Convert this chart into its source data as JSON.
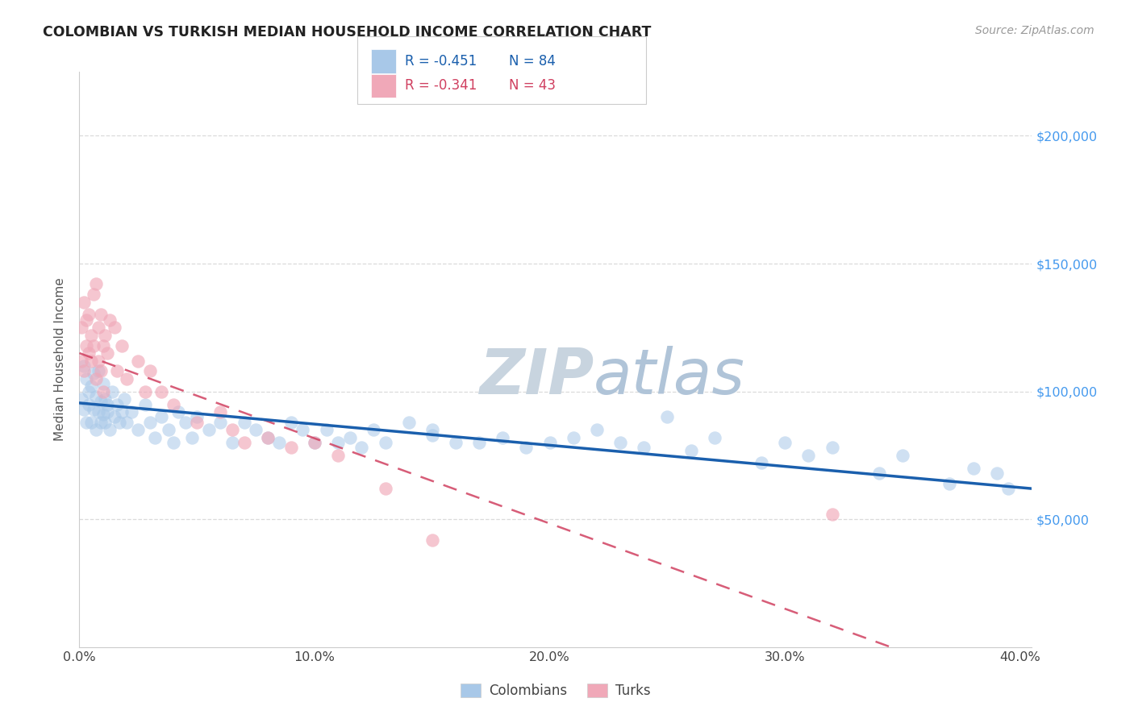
{
  "title": "COLOMBIAN VS TURKISH MEDIAN HOUSEHOLD INCOME CORRELATION CHART",
  "source": "Source: ZipAtlas.com",
  "ylabel": "Median Household Income",
  "xlabel_ticks": [
    "0.0%",
    "10.0%",
    "20.0%",
    "30.0%",
    "40.0%"
  ],
  "xlabel_vals": [
    0.0,
    0.1,
    0.2,
    0.3,
    0.4
  ],
  "ylabel_ticks": [
    "$50,000",
    "$100,000",
    "$150,000",
    "$200,000"
  ],
  "ylabel_vals": [
    50000,
    100000,
    150000,
    200000
  ],
  "xlim": [
    0.0,
    0.405
  ],
  "ylim": [
    0,
    225000
  ],
  "colombian_R": "-0.451",
  "colombian_N": "84",
  "turkish_R": "-0.341",
  "turkish_N": "43",
  "blue_color": "#a8c8e8",
  "pink_color": "#f0a8b8",
  "blue_line_color": "#1a5fad",
  "pink_line_color": "#d04060",
  "watermark_zip_color": "#c8d4e0",
  "watermark_atlas_color": "#b8cce0",
  "background_color": "#ffffff",
  "grid_color": "#d8d8d8",
  "right_axis_label_color": "#4499ee",
  "title_color": "#222222",
  "source_color": "#999999",
  "legend_text_color": "#222222",
  "bottom_legend_color": "#444444",
  "colombians_x": [
    0.001,
    0.002,
    0.002,
    0.003,
    0.003,
    0.004,
    0.004,
    0.005,
    0.005,
    0.006,
    0.006,
    0.007,
    0.007,
    0.008,
    0.008,
    0.009,
    0.009,
    0.01,
    0.01,
    0.011,
    0.011,
    0.012,
    0.012,
    0.013,
    0.014,
    0.015,
    0.016,
    0.017,
    0.018,
    0.019,
    0.02,
    0.022,
    0.025,
    0.028,
    0.03,
    0.032,
    0.035,
    0.038,
    0.04,
    0.042,
    0.045,
    0.048,
    0.05,
    0.055,
    0.06,
    0.065,
    0.07,
    0.075,
    0.08,
    0.085,
    0.09,
    0.095,
    0.1,
    0.105,
    0.11,
    0.115,
    0.12,
    0.125,
    0.13,
    0.14,
    0.15,
    0.16,
    0.18,
    0.2,
    0.22,
    0.25,
    0.27,
    0.3,
    0.32,
    0.35,
    0.38,
    0.39,
    0.395,
    0.15,
    0.17,
    0.19,
    0.21,
    0.24,
    0.29,
    0.31,
    0.34,
    0.37,
    0.23,
    0.26
  ],
  "colombians_y": [
    97000,
    93000,
    110000,
    88000,
    105000,
    100000,
    95000,
    102000,
    88000,
    107000,
    93000,
    98000,
    85000,
    92000,
    108000,
    96000,
    88000,
    103000,
    91000,
    97000,
    88000,
    92000,
    95000,
    85000,
    100000,
    90000,
    95000,
    88000,
    92000,
    97000,
    88000,
    92000,
    85000,
    95000,
    88000,
    82000,
    90000,
    85000,
    80000,
    92000,
    88000,
    82000,
    90000,
    85000,
    88000,
    80000,
    88000,
    85000,
    82000,
    80000,
    88000,
    85000,
    80000,
    85000,
    80000,
    82000,
    78000,
    85000,
    80000,
    88000,
    85000,
    80000,
    82000,
    80000,
    85000,
    90000,
    82000,
    80000,
    78000,
    75000,
    70000,
    68000,
    62000,
    83000,
    80000,
    78000,
    82000,
    78000,
    72000,
    75000,
    68000,
    64000,
    80000,
    77000
  ],
  "turks_x": [
    0.001,
    0.001,
    0.002,
    0.002,
    0.003,
    0.003,
    0.004,
    0.004,
    0.005,
    0.005,
    0.006,
    0.006,
    0.007,
    0.007,
    0.008,
    0.008,
    0.009,
    0.009,
    0.01,
    0.01,
    0.011,
    0.012,
    0.013,
    0.015,
    0.016,
    0.018,
    0.02,
    0.025,
    0.028,
    0.03,
    0.035,
    0.04,
    0.05,
    0.06,
    0.065,
    0.07,
    0.08,
    0.09,
    0.1,
    0.11,
    0.13,
    0.15,
    0.32
  ],
  "turks_y": [
    112000,
    125000,
    108000,
    135000,
    118000,
    128000,
    115000,
    130000,
    122000,
    112000,
    138000,
    118000,
    142000,
    105000,
    125000,
    112000,
    130000,
    108000,
    118000,
    100000,
    122000,
    115000,
    128000,
    125000,
    108000,
    118000,
    105000,
    112000,
    100000,
    108000,
    100000,
    95000,
    88000,
    92000,
    85000,
    80000,
    82000,
    78000,
    80000,
    75000,
    62000,
    42000,
    52000
  ]
}
